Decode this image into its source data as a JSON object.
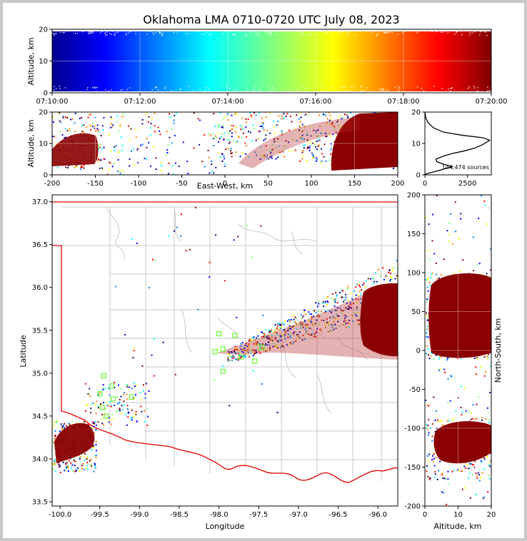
{
  "chart_data": [
    {
      "panel": "time-altitude",
      "type": "scatter",
      "title": "Oklahoma LMA 0710-0720 UTC July 08, 2023",
      "ylabel": "Altitude, km",
      "xlabel": "",
      "xticks": [
        "07:10:00",
        "07:12:00",
        "07:14:00",
        "07:16:00",
        "07:18:00",
        "07:20:00"
      ],
      "yticks": [
        0,
        10,
        20
      ],
      "xlim_minutes": [
        0,
        10
      ],
      "ylim": [
        0,
        20
      ],
      "colormap": "jet (by time)",
      "grid": true
    },
    {
      "panel": "east-west-altitude",
      "type": "scatter",
      "xlabel": "East-West, km",
      "ylabel": "Altitude, km",
      "xticks": [
        -200,
        -150,
        -100,
        -50,
        0,
        50,
        100,
        150,
        200
      ],
      "yticks": [
        0,
        10,
        20
      ],
      "xlim": [
        -200,
        200
      ],
      "ylim": [
        0,
        20
      ],
      "grid": true
    },
    {
      "panel": "altitude-histogram",
      "type": "line",
      "annotation": "144,474 sources",
      "xticks": [
        0,
        2500
      ],
      "yticks": [
        0,
        10,
        20
      ],
      "xlim": [
        0,
        3900
      ],
      "ylim": [
        0,
        20
      ],
      "points": [
        [
          0,
          0.2
        ],
        [
          900,
          1.5
        ],
        [
          1600,
          2.6
        ],
        [
          1100,
          3.4
        ],
        [
          700,
          4.2
        ],
        [
          650,
          5.0
        ],
        [
          1100,
          6.0
        ],
        [
          1600,
          6.8
        ],
        [
          2300,
          7.6
        ],
        [
          2900,
          8.5
        ],
        [
          3350,
          9.5
        ],
        [
          3650,
          10.5
        ],
        [
          3800,
          11.0
        ],
        [
          3450,
          11.8
        ],
        [
          2200,
          12.6
        ],
        [
          1100,
          13.6
        ],
        [
          500,
          15.0
        ],
        [
          200,
          16.5
        ],
        [
          60,
          18.0
        ],
        [
          0,
          20
        ]
      ]
    },
    {
      "panel": "plan-view",
      "type": "scatter",
      "xlabel": "Longitude",
      "ylabel": "Latitude",
      "xticks": [
        -100.0,
        -99.5,
        -99.0,
        -98.5,
        -98.0,
        -97.5,
        -97.0,
        -96.5,
        -96.0
      ],
      "yticks": [
        33.5,
        34.0,
        34.5,
        35.0,
        35.5,
        36.0,
        36.5,
        37.0
      ],
      "xlim": [
        -100.1,
        -95.75
      ],
      "ylim": [
        33.45,
        37.08
      ],
      "station_color": "#66ff33"
    },
    {
      "panel": "altitude-north-south",
      "type": "scatter",
      "xlabel": "Altitude, km",
      "ylabel": "North-South, km",
      "xticks": [
        0,
        10,
        20
      ],
      "yticks": [
        -200,
        -150,
        -100,
        -50,
        0,
        50,
        100,
        150,
        200
      ],
      "xlim": [
        0,
        20
      ],
      "ylim": [
        -200,
        200
      ],
      "grid": true
    }
  ]
}
